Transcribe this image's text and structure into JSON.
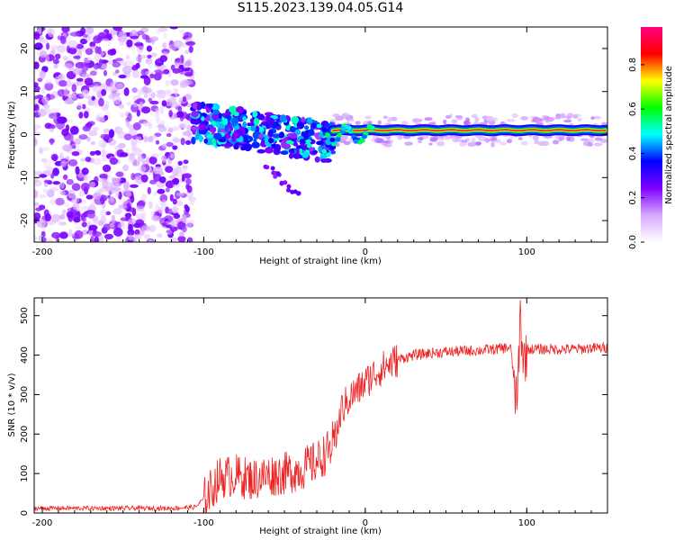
{
  "title": "S115.2023.139.04.05.G14",
  "colors": {
    "snr_line": "#ee2222",
    "plot_bg": "#ffffff",
    "axis": "#000000"
  },
  "chart_data": [
    {
      "type": "heatmap",
      "xlabel": "Height of straight line (km)",
      "ylabel": "Frequency (Hz)",
      "xlim": [
        -205,
        150
      ],
      "ylim": [
        -25,
        25
      ],
      "xticks": [
        -200,
        -100,
        0,
        100
      ],
      "yticks": [
        -20,
        -10,
        0,
        10,
        20
      ],
      "colorbar": {
        "label": "Normalized spectral amplitude",
        "range": [
          0,
          0.97
        ],
        "ticks": [
          "0.0",
          "0.2",
          "0.4",
          "0.6",
          "0.8"
        ],
        "tick_values": [
          0,
          0.2,
          0.4,
          0.6,
          0.8
        ],
        "colormap": [
          "#ffffff",
          "#d7a8ff",
          "#8000ff",
          "#0000ff",
          "#00ffff",
          "#00ff00",
          "#ffff00",
          "#ff0000",
          "#ff0080"
        ]
      },
      "features": {
        "noise_region_km": [
          -205,
          -107
        ],
        "scatter_region_km": [
          -107,
          -20
        ],
        "tone_start_km": -20,
        "tone_frequency_hz": 1.0
      }
    },
    {
      "type": "line",
      "xlabel": "Height of straight line (km)",
      "ylabel": "SNR (10 * v/v)",
      "xlim": [
        -205,
        150
      ],
      "ylim": [
        0,
        545
      ],
      "xticks": [
        -200,
        -100,
        0,
        100
      ],
      "yticks": [
        0,
        100,
        200,
        300,
        400,
        500
      ],
      "series": [
        {
          "x": [
            -205,
            -180,
            -150,
            -120,
            -105,
            -98,
            -90,
            -80,
            -70,
            -60,
            -50,
            -40,
            -30,
            -22,
            -18,
            -15,
            -10,
            -5,
            0,
            5,
            10,
            15,
            20,
            25,
            30,
            40,
            50,
            60,
            70,
            80,
            90,
            94,
            96,
            98,
            100,
            110,
            120,
            130,
            140,
            150
          ],
          "values": [
            12,
            12,
            12,
            12,
            15,
            45,
            90,
            95,
            85,
            95,
            100,
            110,
            130,
            160,
            200,
            260,
            290,
            310,
            330,
            350,
            365,
            378,
            388,
            395,
            400,
            405,
            408,
            410,
            412,
            415,
            420,
            260,
            500,
            380,
            415,
            415,
            415,
            415,
            418,
            418
          ]
        }
      ]
    }
  ]
}
